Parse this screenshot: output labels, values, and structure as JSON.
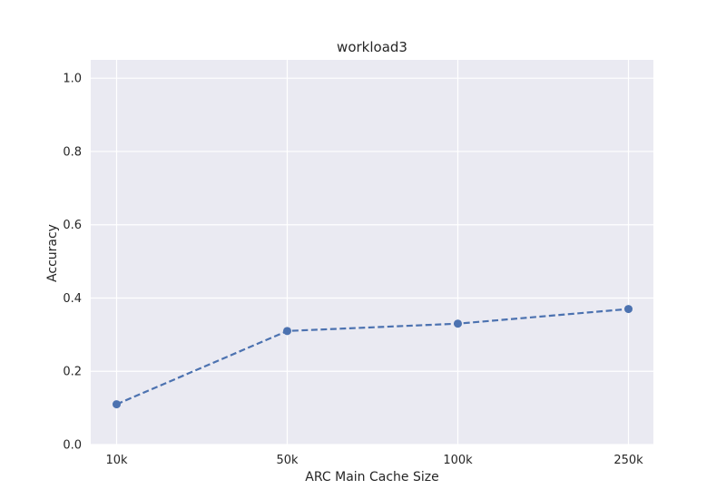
{
  "chart_data": {
    "type": "line",
    "title": "workload3",
    "xlabel": "ARC Main Cache Size",
    "ylabel": "Accuracy",
    "categories": [
      "10k",
      "50k",
      "100k",
      "250k"
    ],
    "series": [
      {
        "values": [
          0.11,
          0.31,
          0.33,
          0.37
        ]
      }
    ],
    "ylim": [
      0.0,
      1.05
    ],
    "yticks": [
      0.0,
      0.2,
      0.4,
      0.6,
      0.8,
      1.0
    ],
    "ytick_labels": [
      "0.0",
      "0.2",
      "0.4",
      "0.6",
      "0.8",
      "1.0"
    ],
    "grid": true,
    "line_style": "dashed",
    "marker": "circle",
    "colors": {
      "background": "#eaeaf2",
      "grid": "#ffffff",
      "line": "#4c72b0"
    }
  }
}
